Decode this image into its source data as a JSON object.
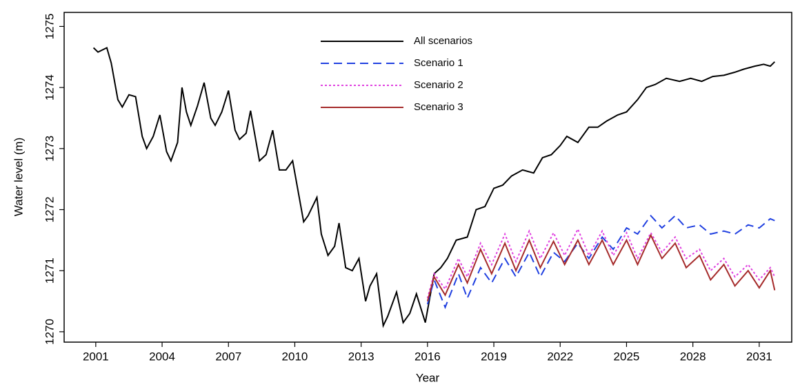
{
  "chart_data": {
    "type": "line",
    "xlabel": "Year",
    "ylabel": "Water level (m)",
    "xlim": [
      1999.57,
      2032.47
    ],
    "ylim": [
      1269.83,
      1275.23
    ],
    "xticks": [
      2001,
      2004,
      2007,
      2010,
      2013,
      2016,
      2019,
      2022,
      2025,
      2028,
      2031
    ],
    "yticks": [
      1270,
      1271,
      1272,
      1273,
      1274,
      1275
    ],
    "legend_position": "upper center",
    "series": [
      {
        "name": "All scenarios",
        "color": "#000000",
        "linestyle": "solid",
        "x": [
          2000.9,
          2001.1,
          2001.5,
          2001.7,
          2002.0,
          2002.2,
          2002.5,
          2002.8,
          2003.1,
          2003.3,
          2003.6,
          2003.9,
          2004.2,
          2004.4,
          2004.7,
          2004.9,
          2005.1,
          2005.3,
          2005.6,
          2005.9,
          2006.2,
          2006.4,
          2006.7,
          2007.0,
          2007.3,
          2007.5,
          2007.8,
          2008.0,
          2008.4,
          2008.7,
          2009.0,
          2009.3,
          2009.6,
          2009.9,
          2010.2,
          2010.4,
          2010.6,
          2011.0,
          2011.2,
          2011.5,
          2011.8,
          2012.0,
          2012.3,
          2012.6,
          2012.9,
          2013.2,
          2013.4,
          2013.7,
          2014.0,
          2014.2,
          2014.6,
          2014.9,
          2015.2,
          2015.5,
          2015.9,
          2016.1,
          2016.3,
          2016.6,
          2016.9,
          2017.3,
          2017.8,
          2018.2,
          2018.6,
          2019.0,
          2019.4,
          2019.8,
          2020.3,
          2020.8,
          2021.2,
          2021.6,
          2022.0,
          2022.3,
          2022.8,
          2023.3,
          2023.7,
          2024.1,
          2024.6,
          2025.0,
          2025.5,
          2025.9,
          2026.3,
          2026.8,
          2027.4,
          2027.9,
          2028.4,
          2028.9,
          2029.4,
          2029.9,
          2030.3,
          2030.8,
          2031.2,
          2031.5,
          2031.7
        ],
        "values": [
          1274.65,
          1274.58,
          1274.65,
          1274.4,
          1273.8,
          1273.68,
          1273.88,
          1273.85,
          1273.2,
          1273.0,
          1273.2,
          1273.55,
          1272.95,
          1272.8,
          1273.1,
          1274.0,
          1273.6,
          1273.38,
          1273.7,
          1274.08,
          1273.5,
          1273.38,
          1273.6,
          1273.95,
          1273.3,
          1273.15,
          1273.25,
          1273.62,
          1272.8,
          1272.9,
          1273.3,
          1272.65,
          1272.65,
          1272.8,
          1272.2,
          1271.8,
          1271.9,
          1272.2,
          1271.6,
          1271.25,
          1271.4,
          1271.78,
          1271.05,
          1271.0,
          1271.2,
          1270.5,
          1270.75,
          1270.95,
          1270.1,
          1270.25,
          1270.65,
          1270.15,
          1270.3,
          1270.62,
          1270.15,
          1270.55,
          1270.95,
          1271.05,
          1271.2,
          1271.5,
          1271.55,
          1272.0,
          1272.05,
          1272.35,
          1272.4,
          1272.55,
          1272.65,
          1272.6,
          1272.85,
          1272.9,
          1273.05,
          1273.2,
          1273.1,
          1273.35,
          1273.35,
          1273.45,
          1273.55,
          1273.6,
          1273.8,
          1274.0,
          1274.05,
          1274.15,
          1274.1,
          1274.15,
          1274.1,
          1274.18,
          1274.2,
          1274.25,
          1274.3,
          1274.35,
          1274.38,
          1274.35,
          1274.42
        ]
      },
      {
        "name": "Scenario 1",
        "color": "#1f3fe0",
        "linestyle": "dashed",
        "x": [
          2016.0,
          2016.3,
          2016.8,
          2017.4,
          2017.8,
          2018.4,
          2018.9,
          2019.5,
          2020.0,
          2020.6,
          2021.1,
          2021.7,
          2022.2,
          2022.8,
          2023.3,
          2023.9,
          2024.4,
          2025.0,
          2025.5,
          2026.1,
          2026.6,
          2027.2,
          2027.7,
          2028.3,
          2028.8,
          2029.4,
          2029.9,
          2030.5,
          2031.0,
          2031.5,
          2031.7
        ],
        "values": [
          1270.45,
          1270.85,
          1270.4,
          1270.95,
          1270.55,
          1271.05,
          1270.8,
          1271.2,
          1270.9,
          1271.3,
          1270.9,
          1271.3,
          1271.15,
          1271.45,
          1271.2,
          1271.55,
          1271.35,
          1271.7,
          1271.6,
          1271.9,
          1271.7,
          1271.9,
          1271.7,
          1271.75,
          1271.6,
          1271.65,
          1271.6,
          1271.75,
          1271.7,
          1271.85,
          1271.82
        ]
      },
      {
        "name": "Scenario 2",
        "color": "#e040e0",
        "linestyle": "dotted",
        "x": [
          2016.0,
          2016.3,
          2016.8,
          2017.4,
          2017.8,
          2018.4,
          2018.9,
          2019.5,
          2020.0,
          2020.6,
          2021.1,
          2021.7,
          2022.2,
          2022.8,
          2023.3,
          2023.9,
          2024.4,
          2025.0,
          2025.5,
          2026.1,
          2026.6,
          2027.2,
          2027.7,
          2028.3,
          2028.8,
          2029.4,
          2029.9,
          2030.5,
          2031.0,
          2031.5,
          2031.7
        ],
        "values": [
          1270.55,
          1270.95,
          1270.7,
          1271.2,
          1270.9,
          1271.45,
          1271.1,
          1271.6,
          1271.15,
          1271.65,
          1271.2,
          1271.62,
          1271.25,
          1271.68,
          1271.25,
          1271.65,
          1271.25,
          1271.62,
          1271.2,
          1271.62,
          1271.3,
          1271.55,
          1271.2,
          1271.35,
          1271.0,
          1271.2,
          1270.9,
          1271.1,
          1270.85,
          1271.05,
          1270.9
        ]
      },
      {
        "name": "Scenario 3",
        "color": "#a52a2a",
        "linestyle": "solid",
        "x": [
          2016.0,
          2016.3,
          2016.8,
          2017.4,
          2017.8,
          2018.4,
          2018.9,
          2019.5,
          2020.0,
          2020.6,
          2021.1,
          2021.7,
          2022.2,
          2022.8,
          2023.3,
          2023.9,
          2024.4,
          2025.0,
          2025.5,
          2026.1,
          2026.6,
          2027.2,
          2027.7,
          2028.3,
          2028.8,
          2029.4,
          2029.9,
          2030.5,
          2031.0,
          2031.5,
          2031.7
        ],
        "values": [
          1270.5,
          1270.9,
          1270.6,
          1271.1,
          1270.8,
          1271.35,
          1270.95,
          1271.45,
          1271.0,
          1271.5,
          1271.05,
          1271.48,
          1271.1,
          1271.5,
          1271.1,
          1271.5,
          1271.1,
          1271.5,
          1271.1,
          1271.58,
          1271.2,
          1271.45,
          1271.05,
          1271.25,
          1270.85,
          1271.1,
          1270.75,
          1271.0,
          1270.72,
          1271.0,
          1270.68
        ]
      }
    ]
  }
}
